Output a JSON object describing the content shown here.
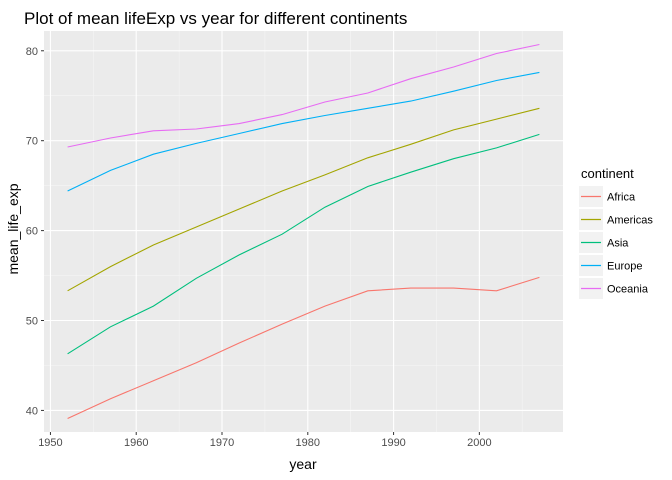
{
  "chart_data": {
    "type": "line",
    "title": "Plot of mean lifeExp vs year for different continents",
    "xlabel": "year",
    "ylabel": "mean_life_exp",
    "xlim": [
      1949.25,
      2009.75
    ],
    "ylim": [
      37.6,
      82.2
    ],
    "x_ticks": [
      1950,
      1960,
      1970,
      1980,
      1990,
      2000
    ],
    "y_ticks": [
      40,
      50,
      60,
      70,
      80
    ],
    "grid": true,
    "legend": {
      "title": "continent",
      "position": "right"
    },
    "x": [
      1952,
      1957,
      1962,
      1967,
      1972,
      1977,
      1982,
      1987,
      1992,
      1997,
      2002,
      2007
    ],
    "series": [
      {
        "name": "Africa",
        "color": "#F8766D",
        "values": [
          39.1,
          41.3,
          43.3,
          45.3,
          47.5,
          49.6,
          51.6,
          53.3,
          53.6,
          53.6,
          53.3,
          54.8
        ]
      },
      {
        "name": "Americas",
        "color": "#A3A500",
        "values": [
          53.3,
          56.0,
          58.4,
          60.4,
          62.4,
          64.4,
          66.2,
          68.1,
          69.6,
          71.2,
          72.4,
          73.6
        ]
      },
      {
        "name": "Asia",
        "color": "#00BF7D",
        "values": [
          46.3,
          49.3,
          51.6,
          54.7,
          57.3,
          59.6,
          62.6,
          64.9,
          66.5,
          68.0,
          69.2,
          70.7
        ]
      },
      {
        "name": "Europe",
        "color": "#00B0F6",
        "values": [
          64.4,
          66.7,
          68.5,
          69.7,
          70.8,
          71.9,
          72.8,
          73.6,
          74.4,
          75.5,
          76.7,
          77.6
        ]
      },
      {
        "name": "Oceania",
        "color": "#E76BF3",
        "values": [
          69.3,
          70.3,
          71.1,
          71.3,
          71.9,
          72.9,
          74.3,
          75.3,
          76.9,
          78.2,
          79.7,
          80.7
        ]
      }
    ]
  }
}
